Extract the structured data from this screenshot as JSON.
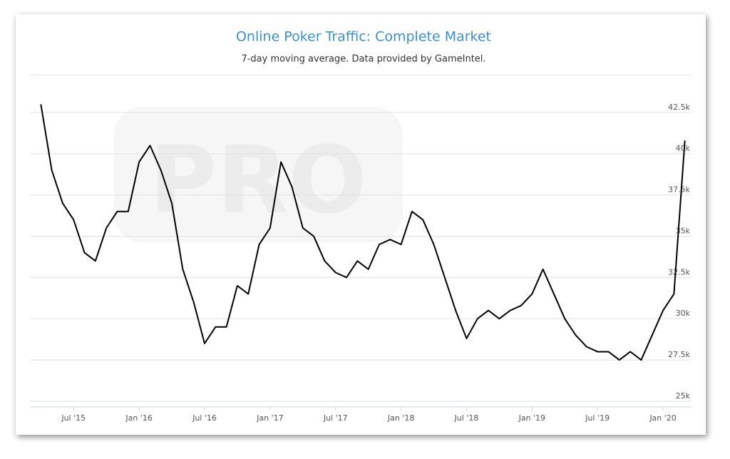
{
  "chart_data": {
    "type": "line",
    "title": "Online Poker Traffic: Complete Market",
    "subtitle": "7-day moving average. Data provided by GameIntel.",
    "watermark": "PRO",
    "x": [
      "2015-04",
      "2015-05",
      "2015-06",
      "2015-07",
      "2015-08",
      "2015-09",
      "2015-10",
      "2015-11",
      "2015-12",
      "2016-01",
      "2016-02",
      "2016-03",
      "2016-04",
      "2016-05",
      "2016-06",
      "2016-07",
      "2016-08",
      "2016-09",
      "2016-10",
      "2016-11",
      "2016-12",
      "2017-01",
      "2017-02",
      "2017-03",
      "2017-04",
      "2017-05",
      "2017-06",
      "2017-07",
      "2017-08",
      "2017-09",
      "2017-10",
      "2017-11",
      "2017-12",
      "2018-01",
      "2018-02",
      "2018-03",
      "2018-04",
      "2018-05",
      "2018-06",
      "2018-07",
      "2018-08",
      "2018-09",
      "2018-10",
      "2018-11",
      "2018-12",
      "2019-01",
      "2019-02",
      "2019-03",
      "2019-04",
      "2019-05",
      "2019-06",
      "2019-07",
      "2019-08",
      "2019-09",
      "2019-10",
      "2019-11",
      "2019-12",
      "2020-01",
      "2020-02",
      "2020-03"
    ],
    "series": [
      {
        "name": "Complete Market",
        "color": "#000000",
        "values": [
          43000,
          39000,
          37000,
          36000,
          34000,
          33500,
          35500,
          36500,
          36500,
          39500,
          40500,
          39000,
          37000,
          33000,
          31000,
          28500,
          29500,
          29500,
          32000,
          31500,
          34500,
          35500,
          39500,
          38000,
          35500,
          35000,
          33500,
          32800,
          32500,
          33500,
          33000,
          34500,
          34800,
          34500,
          36500,
          36000,
          34500,
          32500,
          30500,
          28800,
          30000,
          30500,
          30000,
          30500,
          30800,
          31500,
          33000,
          31500,
          30000,
          29000,
          28300,
          28000,
          28000,
          27500,
          28000,
          27500,
          29000,
          30500,
          31500,
          40800
        ]
      }
    ],
    "xlim": [
      "2015-03",
      "2020-04"
    ],
    "xticks": [
      {
        "value": "2015-07",
        "label": "Jul '15"
      },
      {
        "value": "2016-01",
        "label": "Jan '16"
      },
      {
        "value": "2016-07",
        "label": "Jul '16"
      },
      {
        "value": "2017-01",
        "label": "Jan '17"
      },
      {
        "value": "2017-07",
        "label": "Jul '17"
      },
      {
        "value": "2018-01",
        "label": "Jan '18"
      },
      {
        "value": "2018-07",
        "label": "Jul '18"
      },
      {
        "value": "2019-01",
        "label": "Jan '19"
      },
      {
        "value": "2019-07",
        "label": "Jul '19"
      },
      {
        "value": "2020-01",
        "label": "Jan '20"
      }
    ],
    "ylim": [
      24650,
      45000
    ],
    "yticks": [
      {
        "value": 25000,
        "label": "25k"
      },
      {
        "value": 27500,
        "label": "27.5k"
      },
      {
        "value": 30000,
        "label": "30k"
      },
      {
        "value": 32500,
        "label": "32.5k"
      },
      {
        "value": 35000,
        "label": "35k"
      },
      {
        "value": 37500,
        "label": "37.5k"
      },
      {
        "value": 40000,
        "label": "40k"
      },
      {
        "value": 42500,
        "label": "42.5k"
      }
    ],
    "grid": true
  }
}
